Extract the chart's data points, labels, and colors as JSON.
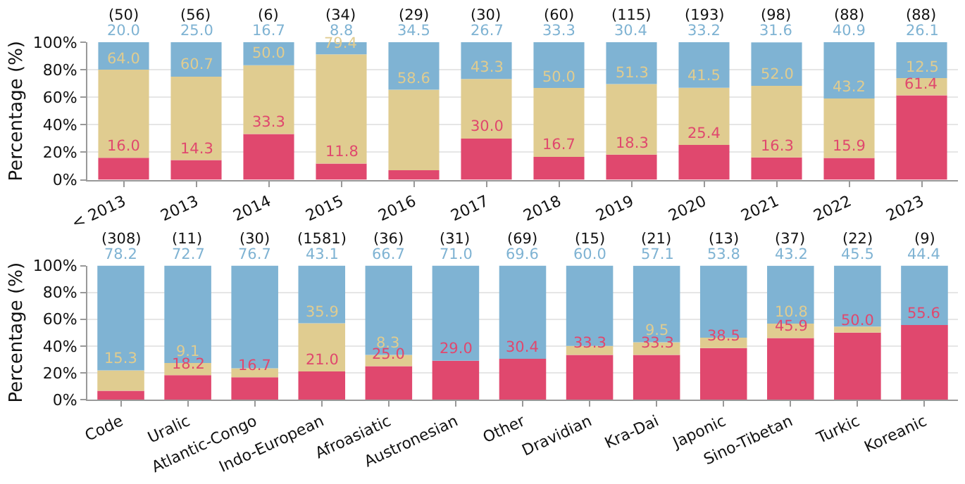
{
  "chart_data": [
    {
      "type": "bar",
      "stacked": true,
      "ylabel": "Percentage (%)",
      "grid": "y",
      "ylim": [
        0,
        100
      ],
      "yticks": [
        {
          "value": 0,
          "label": "0%"
        },
        {
          "value": 20,
          "label": "20%"
        },
        {
          "value": 40,
          "label": "40%"
        },
        {
          "value": 60,
          "label": "60%"
        },
        {
          "value": 80,
          "label": "80%"
        },
        {
          "value": 100,
          "label": "100%"
        }
      ],
      "categories": [
        "< 2013",
        "2013",
        "2014",
        "2015",
        "2016",
        "2017",
        "2018",
        "2019",
        "2020",
        "2021",
        "2022",
        "2023"
      ],
      "series": [
        {
          "color": "#e0486e",
          "values": [
            16.0,
            14.3,
            33.3,
            11.8,
            6.9,
            30.0,
            16.7,
            18.3,
            25.4,
            16.3,
            15.9,
            61.4
          ],
          "value_labels": [
            "16.0",
            "14.3",
            "33.3",
            "11.8",
            null,
            "30.0",
            "16.7",
            "18.3",
            "25.4",
            "16.3",
            "15.9",
            "61.4"
          ]
        },
        {
          "color": "#e0cc90",
          "values": [
            64.0,
            60.7,
            50.0,
            79.4,
            58.6,
            43.3,
            50.0,
            51.3,
            41.5,
            52.0,
            43.2,
            12.5
          ],
          "value_labels": [
            "64.0",
            "60.7",
            "50.0",
            "79.4",
            "58.6",
            "43.3",
            "50.0",
            "51.3",
            "41.5",
            "52.0",
            "43.2",
            "12.5"
          ]
        },
        {
          "color": "#7fb3d3",
          "values": [
            20.0,
            25.0,
            16.7,
            8.8,
            34.5,
            26.7,
            33.3,
            30.4,
            33.2,
            31.6,
            40.9,
            26.1
          ],
          "value_labels": [
            "20.0",
            "25.0",
            "16.7",
            "8.8",
            "34.5",
            "26.7",
            "33.3",
            "30.4",
            "33.2",
            "31.6",
            "40.9",
            "26.1"
          ]
        }
      ],
      "annotations": [
        "(50)",
        "(56)",
        "(6)",
        "(34)",
        "(29)",
        "(30)",
        "(60)",
        "(115)",
        "(193)",
        "(98)",
        "(88)",
        "(88)"
      ]
    },
    {
      "type": "bar",
      "stacked": true,
      "ylabel": "Percentage (%)",
      "grid": "y",
      "ylim": [
        0,
        100
      ],
      "yticks": [
        {
          "value": 0,
          "label": "0%"
        },
        {
          "value": 20,
          "label": "20%"
        },
        {
          "value": 40,
          "label": "40%"
        },
        {
          "value": 60,
          "label": "60%"
        },
        {
          "value": 80,
          "label": "80%"
        },
        {
          "value": 100,
          "label": "100%"
        }
      ],
      "categories": [
        "Code",
        "Uralic",
        "Atlantic-Congo",
        "Indo-European",
        "Afroasiatic",
        "Austronesian",
        "Other",
        "Dravidian",
        "Kra-Dai",
        "Japonic",
        "Sino-Tibetan",
        "Turkic",
        "Koreanic"
      ],
      "series": [
        {
          "color": "#e0486e",
          "values": [
            6.5,
            18.2,
            16.7,
            21.0,
            25.0,
            29.0,
            30.4,
            33.3,
            33.3,
            38.5,
            45.9,
            50.0,
            55.6
          ],
          "value_labels": [
            null,
            "18.2",
            "16.7",
            "21.0",
            "25.0",
            "29.0",
            "30.4",
            "33.3",
            "33.3",
            "38.5",
            "45.9",
            "50.0",
            "55.6"
          ]
        },
        {
          "color": "#e0cc90",
          "values": [
            15.3,
            9.1,
            6.6,
            35.9,
            8.3,
            0,
            0,
            6.7,
            9.5,
            7.7,
            10.8,
            4.5,
            0
          ],
          "value_labels": [
            "15.3",
            "9.1",
            null,
            "35.9",
            "8.3",
            null,
            null,
            null,
            "9.5",
            null,
            "10.8",
            null,
            null
          ]
        },
        {
          "color": "#7fb3d3",
          "values": [
            78.2,
            72.7,
            76.7,
            43.1,
            66.7,
            71.0,
            69.6,
            60.0,
            57.1,
            53.8,
            43.2,
            45.5,
            44.4
          ],
          "value_labels": [
            "78.2",
            "72.7",
            "76.7",
            "43.1",
            "66.7",
            "71.0",
            "69.6",
            "60.0",
            "57.1",
            "53.8",
            "43.2",
            "45.5",
            "44.4"
          ]
        }
      ],
      "annotations": [
        "(308)",
        "(11)",
        "(30)",
        "(1581)",
        "(36)",
        "(31)",
        "(69)",
        "(15)",
        "(21)",
        "(13)",
        "(37)",
        "(22)",
        "(9)"
      ]
    }
  ]
}
